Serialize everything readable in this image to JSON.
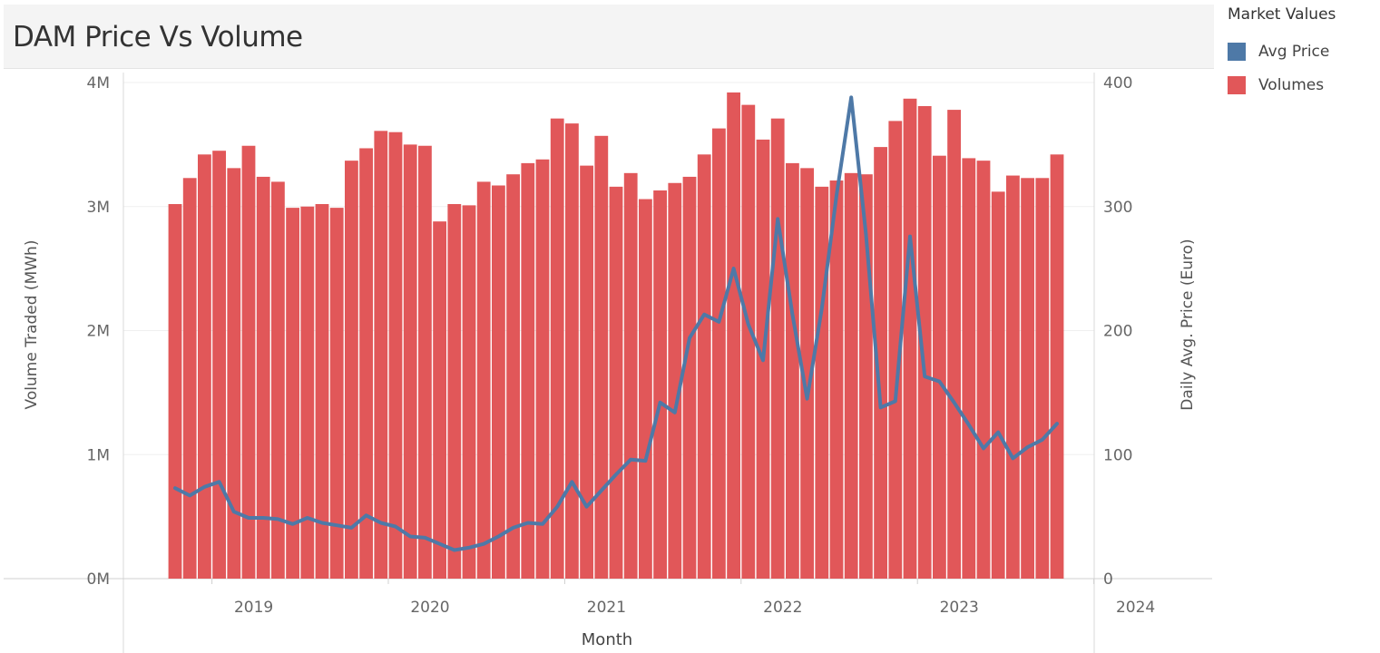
{
  "title": "DAM Price Vs Volume",
  "legend": {
    "title": "Market Values",
    "items": [
      {
        "label": "Avg Price",
        "color": "#4e79a7"
      },
      {
        "label": "Volumes",
        "color": "#e15759"
      }
    ]
  },
  "chart_data": {
    "type": "bar",
    "xlabel": "Month",
    "ylabel": "Volume Traded (MWh)",
    "y2label": "Daily Avg. Price (Euro)",
    "x_ticks": [
      "2019",
      "2020",
      "2021",
      "2022",
      "2023",
      "2024"
    ],
    "y_ticks": [
      "0M",
      "1M",
      "2M",
      "3M",
      "4M"
    ],
    "y2_ticks": [
      "0",
      "100",
      "200",
      "300",
      "400"
    ],
    "ylim": [
      0,
      4000000
    ],
    "y2lim": [
      0,
      400
    ],
    "grid": true,
    "legend_position": "top-right",
    "categories": [
      "2018-10",
      "2018-11",
      "2018-12",
      "2019-01",
      "2019-02",
      "2019-03",
      "2019-04",
      "2019-05",
      "2019-06",
      "2019-07",
      "2019-08",
      "2019-09",
      "2019-10",
      "2019-11",
      "2019-12",
      "2020-01",
      "2020-02",
      "2020-03",
      "2020-04",
      "2020-05",
      "2020-06",
      "2020-07",
      "2020-08",
      "2020-09",
      "2020-10",
      "2020-11",
      "2020-12",
      "2021-01",
      "2021-02",
      "2021-03",
      "2021-04",
      "2021-05",
      "2021-06",
      "2021-07",
      "2021-08",
      "2021-09",
      "2021-10",
      "2021-11",
      "2021-12",
      "2022-01",
      "2022-02",
      "2022-03",
      "2022-04",
      "2022-05",
      "2022-06",
      "2022-07",
      "2022-08",
      "2022-09",
      "2022-10",
      "2022-11",
      "2022-12",
      "2023-01",
      "2023-02",
      "2023-03",
      "2023-04",
      "2023-05",
      "2023-06",
      "2023-07",
      "2023-08",
      "2023-09",
      "2023-10"
    ],
    "series": [
      {
        "name": "Volumes",
        "axis": "left",
        "type": "bar",
        "color": "#e15759",
        "values": [
          3020000,
          3230000,
          3420000,
          3450000,
          3310000,
          3490000,
          3240000,
          3200000,
          2990000,
          3000000,
          3020000,
          2990000,
          3370000,
          3470000,
          3610000,
          3600000,
          3500000,
          3490000,
          2880000,
          3020000,
          3010000,
          3200000,
          3170000,
          3260000,
          3350000,
          3380000,
          3710000,
          3670000,
          3330000,
          3570000,
          3160000,
          3270000,
          3060000,
          3130000,
          3190000,
          3240000,
          3420000,
          3630000,
          3920000,
          3820000,
          3540000,
          3710000,
          3350000,
          3310000,
          3160000,
          3210000,
          3270000,
          3260000,
          3480000,
          3690000,
          3870000,
          3810000,
          3410000,
          3780000,
          3390000,
          3370000,
          3120000,
          3250000,
          3230000,
          3230000,
          3420000
        ]
      },
      {
        "name": "Avg Price",
        "axis": "right",
        "type": "line",
        "color": "#4e79a7",
        "values": [
          73,
          67,
          74,
          78,
          54,
          49,
          49,
          48,
          44,
          49,
          45,
          43,
          41,
          51,
          45,
          42,
          34,
          33,
          28,
          23,
          25,
          28,
          34,
          41,
          45,
          44,
          58,
          78,
          58,
          71,
          84,
          96,
          95,
          142,
          134,
          194,
          213,
          207,
          250,
          205,
          176,
          290,
          213,
          145,
          218,
          309,
          388,
          278,
          138,
          143,
          276,
          163,
          159,
          142,
          124,
          105,
          118,
          97,
          106,
          112,
          125
        ]
      }
    ]
  }
}
